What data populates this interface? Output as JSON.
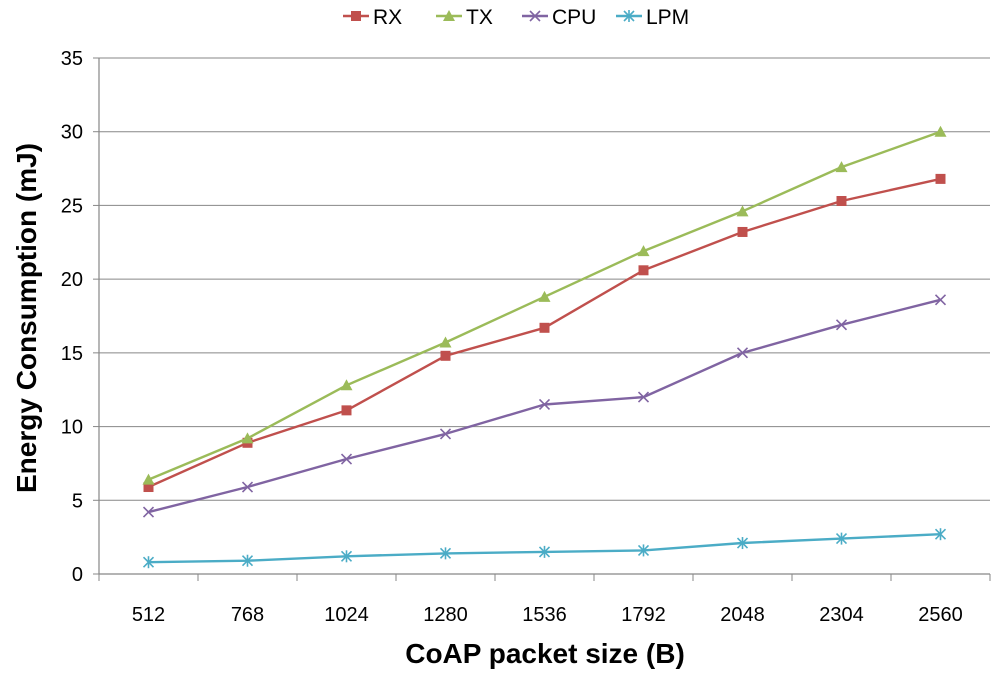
{
  "chart_data": {
    "type": "line",
    "title": "",
    "xlabel": "CoAP packet size (B)",
    "ylabel": "Energy Consumption (mJ)",
    "categories": [
      "512",
      "768",
      "1024",
      "1280",
      "1536",
      "1792",
      "2048",
      "2304",
      "2560"
    ],
    "ylim": [
      0,
      35
    ],
    "yticks": [
      0,
      5,
      10,
      15,
      20,
      25,
      30,
      35
    ],
    "ytick_labels": [
      "0",
      "5",
      "10",
      "15",
      "20",
      "25",
      "30",
      "35"
    ],
    "grid": true,
    "legend_position": "top-center",
    "series": [
      {
        "name": "RX",
        "color": "#c0504d",
        "marker": "square",
        "values": [
          5.9,
          8.9,
          11.1,
          14.8,
          16.7,
          20.6,
          23.2,
          25.3,
          26.8
        ]
      },
      {
        "name": "TX",
        "color": "#9bbb59",
        "marker": "triangle",
        "values": [
          6.4,
          9.2,
          12.8,
          15.7,
          18.8,
          21.9,
          24.6,
          27.6,
          30.0
        ]
      },
      {
        "name": "CPU",
        "color": "#8064a2",
        "marker": "x",
        "values": [
          4.2,
          5.9,
          7.8,
          9.5,
          11.5,
          12.0,
          15.0,
          16.9,
          18.6
        ]
      },
      {
        "name": "LPM",
        "color": "#4bacc6",
        "marker": "star",
        "values": [
          0.8,
          0.9,
          1.2,
          1.4,
          1.5,
          1.6,
          2.1,
          2.4,
          2.7
        ]
      }
    ]
  }
}
